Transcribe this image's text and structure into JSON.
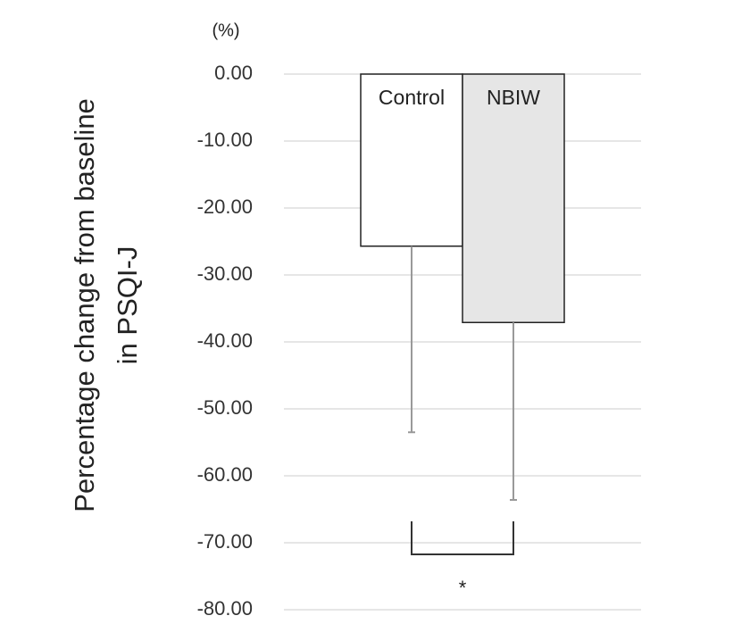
{
  "chart_data": {
    "type": "bar",
    "y_unit": "(%)",
    "y_label": [
      "Percentage change from baseline",
      "in PSQI-J"
    ],
    "categories": [
      "Control",
      "NBIW"
    ],
    "values": [
      -25.7,
      -37.1
    ],
    "errors": [
      27.8,
      26.5
    ],
    "colors": [
      "#ffffff",
      "#e6e6e6"
    ],
    "annotation": "*",
    "ylim": [
      -80,
      0
    ],
    "yticks": [
      {
        "value": 0,
        "label": "0.00"
      },
      {
        "value": -10,
        "label": "-10.00"
      },
      {
        "value": -20,
        "label": "-20.00"
      },
      {
        "value": -30,
        "label": "-30.00"
      },
      {
        "value": -40,
        "label": "-40.00"
      },
      {
        "value": -50,
        "label": "-50.00"
      },
      {
        "value": -60,
        "label": "-60.00"
      },
      {
        "value": -70,
        "label": "-70.00"
      },
      {
        "value": -80,
        "label": "-80.00"
      }
    ],
    "grid": true
  }
}
